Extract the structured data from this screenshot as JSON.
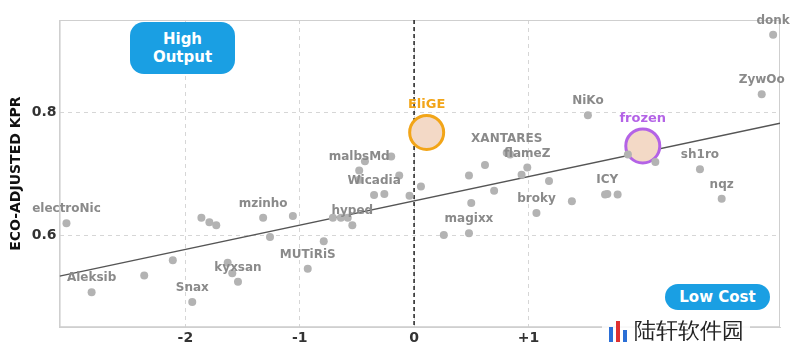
{
  "chart_data": {
    "type": "scatter",
    "ylabel": "ECO-ADJUSTED KPR",
    "x": [
      3.14,
      3.04,
      1.52,
      2.0,
      0.11,
      0.81,
      0.99,
      2.5,
      2.69,
      1.69,
      1.07,
      0.48,
      -0.54,
      -0.48,
      -0.35,
      -1.32,
      -3.04,
      -2.82,
      -1.94,
      -1.54,
      -0.93,
      -2.36,
      -2.11,
      -1.86,
      -1.79,
      -1.73,
      -1.63,
      -1.59,
      -1.26,
      -1.06,
      -0.79,
      -0.71,
      -0.64,
      -0.58,
      -0.48,
      -0.43,
      -0.26,
      -0.2,
      -0.13,
      -0.04,
      0.06,
      0.26,
      0.48,
      0.5,
      0.62,
      0.7,
      0.84,
      0.94,
      1.18,
      1.38,
      1.67,
      1.78,
      1.87,
      2.11
    ],
    "values": [
      0.926,
      0.829,
      0.795,
      0.745,
      0.767,
      0.734,
      0.71,
      0.707,
      0.659,
      0.667,
      0.636,
      0.603,
      0.616,
      0.705,
      0.665,
      0.628,
      0.619,
      0.507,
      0.491,
      0.524,
      0.545,
      0.534,
      0.559,
      0.628,
      0.621,
      0.616,
      0.555,
      0.538,
      0.597,
      0.631,
      0.59,
      0.628,
      0.628,
      0.628,
      0.69,
      0.72,
      0.667,
      0.728,
      0.697,
      0.664,
      0.679,
      0.6,
      0.697,
      0.652,
      0.714,
      0.672,
      0.731,
      0.698,
      0.688,
      0.655,
      0.666,
      0.666,
      0.731,
      0.719
    ],
    "labels": [
      "donk",
      "ZywOo",
      "NiKo",
      "frozen",
      "EliGE",
      "XANTARES",
      "flameZ",
      "sh1ro",
      "nqz",
      "ICY",
      "broky",
      "magixx",
      "hyped",
      "malbsMd",
      "Wicadia",
      "mzinho",
      "electroNic",
      "Aleksib",
      "Snax",
      "kyxsan",
      "MUTiRiS",
      null,
      null,
      null,
      null,
      null,
      null,
      null,
      null,
      null,
      null,
      null,
      null,
      null,
      null,
      null,
      null,
      null,
      null,
      null,
      null,
      null,
      null,
      null,
      null,
      null,
      null,
      null,
      null,
      null,
      null,
      null,
      null,
      null
    ],
    "color": "#b3b3b3",
    "marker": "circle",
    "highlights": [
      {
        "label": "EliGE",
        "color": "#f2a518"
      },
      {
        "label": "frozen",
        "color": "#b463e6"
      }
    ],
    "trendline": {
      "x": [
        -3.1,
        3.2
      ],
      "values": [
        0.533,
        0.782
      ]
    },
    "vlines": [
      0
    ],
    "annotations": [
      "High Output",
      "Low Cost"
    ],
    "watermark": "陆轩软件园",
    "xlim": [
      -3.1,
      3.2
    ],
    "ylim": [
      0.45,
      0.95
    ],
    "xticks": [
      -2,
      -1,
      0,
      {
        "value": 1,
        "label": "+1"
      }
    ],
    "yticks": [
      0.6,
      0.8
    ],
    "grid": true
  }
}
